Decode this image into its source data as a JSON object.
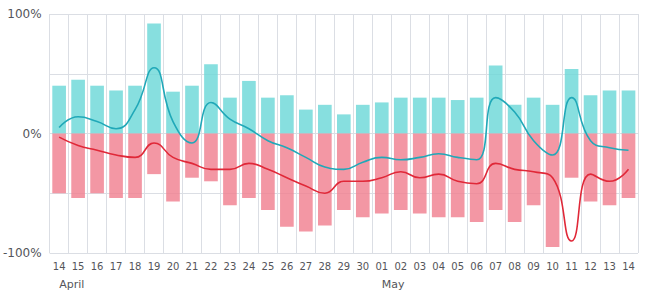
{
  "chart_data": {
    "type": "bar",
    "categories": [
      "14",
      "15",
      "16",
      "17",
      "18",
      "19",
      "20",
      "21",
      "22",
      "23",
      "24",
      "25",
      "26",
      "27",
      "28",
      "29",
      "30",
      "01",
      "02",
      "03",
      "04",
      "05",
      "06",
      "07",
      "08",
      "09",
      "10",
      "11",
      "12",
      "13",
      "14"
    ],
    "series": [
      {
        "type": "bar",
        "color": "#6dd8d8",
        "values": [
          40,
          45,
          40,
          36,
          40,
          92,
          35,
          40,
          58,
          30,
          44,
          30,
          32,
          20,
          24,
          16,
          24,
          26,
          30,
          30,
          30,
          28,
          30,
          57,
          24,
          30,
          24,
          54,
          32,
          36,
          36
        ]
      },
      {
        "type": "bar",
        "color": "#f08090",
        "values": [
          -50,
          -54,
          -50,
          -54,
          -54,
          -34,
          -57,
          -37,
          -40,
          -60,
          -54,
          -64,
          -78,
          -82,
          -77,
          -64,
          -70,
          -67,
          -64,
          -67,
          -70,
          -70,
          -74,
          -64,
          -74,
          -60,
          -95,
          -37,
          -57,
          -60,
          -54
        ]
      },
      {
        "type": "line",
        "color": "#20a8b8",
        "values": [
          5,
          14,
          10,
          4,
          20,
          55,
          10,
          -8,
          26,
          12,
          4,
          -6,
          -12,
          -20,
          -28,
          -30,
          -24,
          -20,
          -22,
          -20,
          -17,
          -20,
          -22,
          30,
          18,
          -6,
          -18,
          30,
          -6,
          -12,
          -14
        ]
      },
      {
        "type": "line",
        "color": "#e02838",
        "values": [
          -3,
          -10,
          -14,
          -18,
          -20,
          -8,
          -20,
          -25,
          -30,
          -30,
          -25,
          -30,
          -37,
          -44,
          -50,
          -40,
          -40,
          -37,
          -32,
          -37,
          -34,
          -40,
          -42,
          -25,
          -30,
          -32,
          -37,
          -90,
          -34,
          -40,
          -30
        ]
      }
    ],
    "ylim": [
      -100,
      100
    ],
    "yticks": [
      {
        "value": -100,
        "label": "-100%"
      },
      {
        "value": -50,
        "label": null
      },
      {
        "value": 0,
        "label": "0%"
      },
      {
        "value": 50,
        "label": null
      },
      {
        "value": 100,
        "label": "100%"
      }
    ],
    "grid": true,
    "annotations": [
      {
        "text": "April",
        "index": 0
      },
      {
        "text": "May",
        "index": 17
      }
    ]
  }
}
